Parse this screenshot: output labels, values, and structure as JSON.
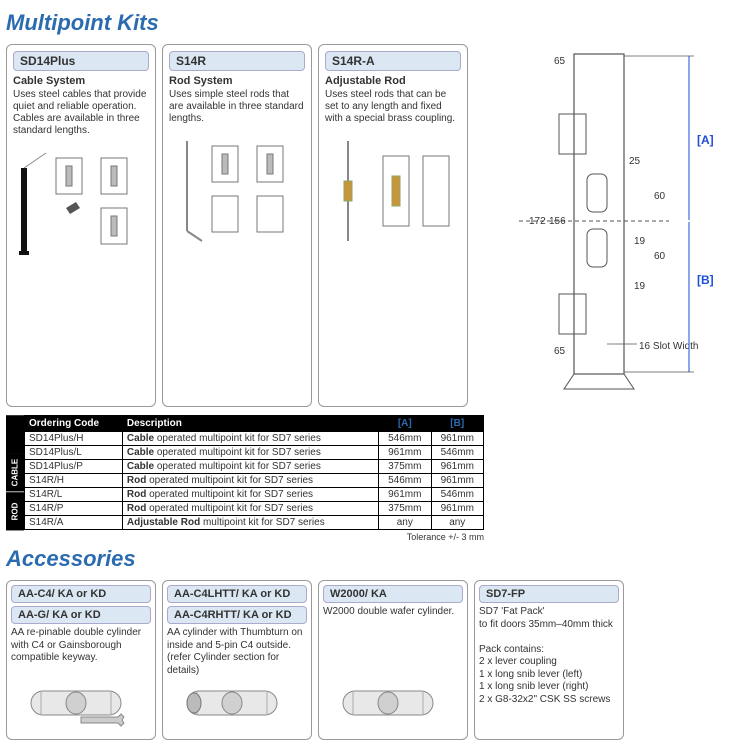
{
  "sections": {
    "kits_title": "Multipoint Kits",
    "accessories_title": "Accessories"
  },
  "kits": [
    {
      "code": "SD14Plus",
      "sub": "Cable System",
      "desc": "Uses steel cables that provide quiet and reliable operation. Cables are available in three standard lengths."
    },
    {
      "code": "S14R",
      "sub": "Rod System",
      "desc": "Uses simple steel rods that are available in three standard lengths."
    },
    {
      "code": "S14R-A",
      "sub": "Adjustable Rod",
      "desc": "Uses steel rods that can be set to any length and fixed with a special brass coupling."
    }
  ],
  "ordering": {
    "headers": {
      "code": "Ordering Code",
      "desc": "Description",
      "a": "[A]",
      "b": "[B]"
    },
    "side_labels": [
      "CABLE",
      "ROD"
    ],
    "rows": [
      {
        "g": 0,
        "code": "SD14Plus/H",
        "desc_b": "Cable",
        "desc_r": " operated multipoint kit for SD7 series",
        "a": "546mm",
        "b": "961mm"
      },
      {
        "g": 0,
        "code": "SD14Plus/L",
        "desc_b": "Cable",
        "desc_r": " operated multipoint kit for SD7 series",
        "a": "961mm",
        "b": "546mm"
      },
      {
        "g": 0,
        "code": "SD14Plus/P",
        "desc_b": "Cable",
        "desc_r": " operated multipoint kit for SD7 series",
        "a": "375mm",
        "b": "961mm"
      },
      {
        "g": 1,
        "code": "S14R/H",
        "desc_b": "Rod",
        "desc_r": " operated multipoint kit for SD7 series",
        "a": "546mm",
        "b": "961mm"
      },
      {
        "g": 1,
        "code": "S14R/L",
        "desc_b": "Rod",
        "desc_r": " operated multipoint kit for SD7 series",
        "a": "961mm",
        "b": "546mm"
      },
      {
        "g": 1,
        "code": "S14R/P",
        "desc_b": "Rod",
        "desc_r": " operated multipoint kit for SD7 series",
        "a": "375mm",
        "b": "961mm"
      },
      {
        "g": 1,
        "code": "S14R/A",
        "desc_b": "Adjustable Rod",
        "desc_r": " multipoint kit for SD7 series",
        "a": "any",
        "b": "any"
      }
    ],
    "tolerance": "Tolerance +/- 3 mm"
  },
  "diagram": {
    "dims": {
      "d65a": "65",
      "d65b": "65",
      "d25": "25",
      "d172": "172",
      "d156": "156",
      "d60a": "60",
      "d60b": "60",
      "d19a": "19",
      "d19b": "19",
      "slot": "16 Slot Width"
    },
    "label_a": "[A]",
    "label_b": "[B]"
  },
  "accessories": [
    {
      "headers": [
        "AA-C4/ KA or KD",
        "AA-G/ KA or KD"
      ],
      "desc": "AA re-pinable double cylinder with C4 or Gainsborough compatible keyway.",
      "illus": "cyl-key"
    },
    {
      "headers": [
        "AA-C4LHTT/ KA or KD",
        "AA-C4RHTT/ KA or KD"
      ],
      "desc": "AA cylinder with Thumbturn on inside and 5-pin C4 outside. (refer Cylinder section for details)",
      "illus": "cyl-thumb"
    },
    {
      "headers": [
        "W2000/ KA"
      ],
      "desc": "W2000 double wafer cylinder.",
      "illus": "cyl-plain"
    },
    {
      "headers": [
        "SD7-FP"
      ],
      "desc": "SD7 'Fat Pack'\nto fit doors 35mm–40mm thick\n\nPack contains:\n2 x lever coupling\n1 x long snib lever (left)\n1 x long snib lever (right)\n2 x G8-32x2\" CSK SS screws",
      "illus": "none"
    }
  ]
}
